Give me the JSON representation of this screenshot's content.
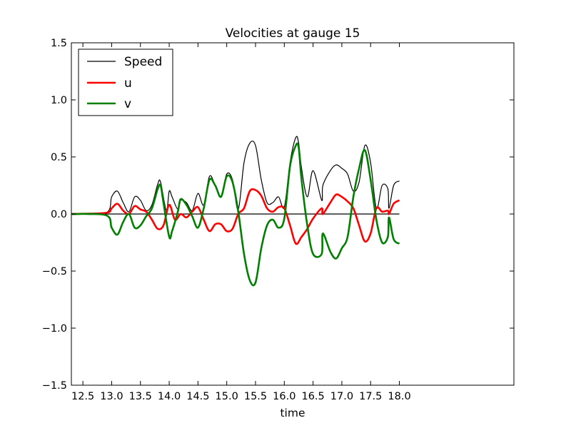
{
  "chart_data": {
    "type": "line",
    "title": "Velocities at gauge 15",
    "xlabel": "time",
    "ylabel": "",
    "xlim": [
      12.3,
      19.99
    ],
    "ylim": [
      -1.5,
      1.5
    ],
    "xticks": [
      "12.5",
      "13.0",
      "13.5",
      "14.0",
      "14.5",
      "15.0",
      "15.5",
      "16.0",
      "16.5",
      "17.0",
      "17.5",
      "18.0"
    ],
    "yticks": [
      "1.5",
      "1.0",
      "0.5",
      "0.0",
      "−0.5",
      "−1.0",
      "−1.5"
    ],
    "legend_position": "top-left",
    "grid": false,
    "zero_line": true,
    "series": [
      {
        "name": "Speed",
        "color": "#000000",
        "x": [
          12.3,
          12.9,
          13.0,
          13.1,
          13.2,
          13.3,
          13.4,
          13.5,
          13.6,
          13.7,
          13.8,
          13.85,
          13.95,
          14.0,
          14.05,
          14.15,
          14.2,
          14.3,
          14.4,
          14.5,
          14.6,
          14.7,
          14.8,
          14.9,
          15.0,
          15.1,
          15.2,
          15.3,
          15.4,
          15.5,
          15.6,
          15.7,
          15.8,
          15.9,
          16.0,
          16.1,
          16.2,
          16.25,
          16.3,
          16.4,
          16.5,
          16.65,
          16.67,
          16.8,
          16.9,
          17.0,
          17.1,
          17.2,
          17.3,
          17.4,
          17.5,
          17.6,
          17.7,
          17.8,
          17.82,
          17.9,
          18.0
        ],
        "y": [
          0.0,
          0.01,
          0.15,
          0.2,
          0.1,
          0.02,
          0.15,
          0.12,
          0.03,
          0.08,
          0.26,
          0.28,
          0.03,
          0.2,
          0.15,
          0.04,
          0.12,
          0.1,
          0.03,
          0.18,
          0.08,
          0.33,
          0.25,
          0.15,
          0.35,
          0.3,
          0.04,
          0.45,
          0.62,
          0.6,
          0.3,
          0.1,
          0.1,
          0.15,
          0.06,
          0.45,
          0.67,
          0.62,
          0.4,
          0.15,
          0.38,
          0.12,
          0.25,
          0.38,
          0.43,
          0.4,
          0.35,
          0.2,
          0.28,
          0.6,
          0.45,
          0.05,
          0.25,
          0.22,
          0.05,
          0.25,
          0.29
        ]
      },
      {
        "name": "u",
        "color": "#ff0000",
        "x": [
          12.3,
          12.9,
          13.0,
          13.1,
          13.2,
          13.3,
          13.4,
          13.5,
          13.6,
          13.7,
          13.8,
          13.9,
          14.0,
          14.1,
          14.2,
          14.3,
          14.4,
          14.5,
          14.6,
          14.7,
          14.8,
          14.9,
          15.0,
          15.1,
          15.2,
          15.3,
          15.4,
          15.5,
          15.6,
          15.7,
          15.8,
          15.9,
          16.0,
          16.1,
          16.2,
          16.3,
          16.4,
          16.5,
          16.65,
          16.67,
          16.8,
          16.9,
          17.0,
          17.1,
          17.2,
          17.3,
          17.4,
          17.5,
          17.6,
          17.7,
          17.8,
          17.82,
          17.9,
          18.0
        ],
        "y": [
          0.0,
          0.01,
          0.05,
          0.09,
          0.03,
          0.0,
          0.07,
          0.04,
          0.02,
          -0.05,
          -0.13,
          -0.1,
          0.08,
          -0.05,
          0.0,
          -0.03,
          0.02,
          0.06,
          -0.05,
          -0.15,
          -0.09,
          -0.09,
          -0.15,
          -0.13,
          0.0,
          0.05,
          0.2,
          0.21,
          0.16,
          0.05,
          0.02,
          0.06,
          0.05,
          -0.1,
          -0.26,
          -0.2,
          -0.13,
          -0.04,
          0.05,
          0.0,
          0.1,
          0.17,
          0.15,
          0.11,
          0.05,
          -0.1,
          -0.24,
          -0.17,
          0.05,
          0.02,
          0.03,
          0.0,
          0.09,
          0.12
        ]
      },
      {
        "name": "v",
        "color": "#008000",
        "x": [
          12.3,
          12.9,
          13.0,
          13.1,
          13.2,
          13.3,
          13.4,
          13.5,
          13.6,
          13.7,
          13.8,
          13.85,
          13.9,
          14.0,
          14.05,
          14.15,
          14.2,
          14.3,
          14.4,
          14.5,
          14.6,
          14.7,
          14.8,
          14.9,
          15.0,
          15.1,
          15.2,
          15.3,
          15.4,
          15.5,
          15.6,
          15.7,
          15.8,
          15.9,
          16.0,
          16.1,
          16.2,
          16.25,
          16.3,
          16.4,
          16.5,
          16.65,
          16.67,
          16.8,
          16.9,
          17.0,
          17.1,
          17.2,
          17.3,
          17.4,
          17.5,
          17.6,
          17.7,
          17.8,
          17.82,
          17.9,
          18.0
        ],
        "y": [
          0.0,
          -0.01,
          -0.12,
          -0.18,
          -0.07,
          0.0,
          -0.12,
          -0.1,
          -0.02,
          0.05,
          0.22,
          0.25,
          0.1,
          -0.2,
          -0.15,
          0.02,
          0.13,
          0.08,
          -0.02,
          -0.12,
          0.05,
          0.3,
          0.25,
          0.15,
          0.33,
          0.28,
          0.02,
          -0.35,
          -0.58,
          -0.6,
          -0.3,
          -0.1,
          -0.05,
          -0.12,
          -0.04,
          0.42,
          0.6,
          0.58,
          0.3,
          -0.1,
          -0.35,
          -0.35,
          -0.17,
          -0.33,
          -0.39,
          -0.3,
          -0.2,
          0.15,
          0.4,
          0.56,
          0.3,
          -0.05,
          -0.25,
          -0.2,
          -0.03,
          -0.22,
          -0.26
        ]
      }
    ]
  }
}
